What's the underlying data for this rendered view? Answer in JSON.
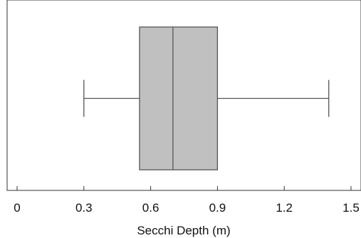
{
  "chart_data": {
    "type": "boxplot",
    "title": "",
    "xlabel": "Secchi Depth (m)",
    "ylabel": "",
    "xlim": [
      0,
      1.5
    ],
    "xticks": [
      0,
      0.3,
      0.6,
      0.9,
      1.2,
      1.5
    ],
    "xtick_labels": [
      "0",
      "0.3",
      "0.6",
      "0.9",
      "1.2",
      "1.5"
    ],
    "grid": false,
    "orientation": "horizontal",
    "box": {
      "min": 0.3,
      "q1": 0.55,
      "median": 0.7,
      "q3": 0.9,
      "max": 1.4
    },
    "colors": {
      "box_fill": "#c0c0c0",
      "box_stroke": "#555555",
      "whisker": "#555555",
      "frame": "#333333"
    }
  }
}
